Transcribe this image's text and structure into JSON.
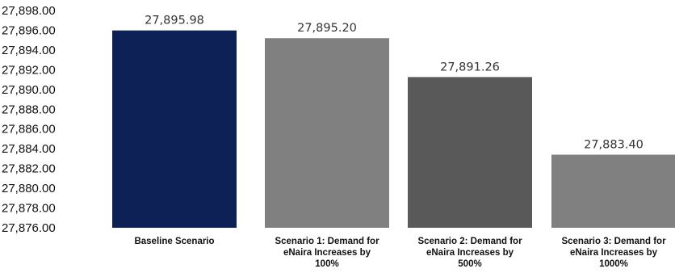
{
  "chart_data": {
    "type": "bar",
    "title": "",
    "xlabel": "",
    "ylabel": "",
    "categories": [
      [
        "Baseline Scenario"
      ],
      [
        "Scenario 1:  Demand for",
        "eNaira Increases by",
        "100%"
      ],
      [
        "Scenario 2: Demand for",
        "eNaira Increases by",
        "500%"
      ],
      [
        "Scenario 3: Demand for",
        "eNaira Increases by",
        "1000%"
      ]
    ],
    "values": [
      27895.98,
      27895.2,
      27891.26,
      27883.4
    ],
    "data_labels": [
      "27,895.98",
      "27,895.20",
      "27,891.26",
      "27,883.40"
    ],
    "bar_colors": [
      "#0d2157",
      "#808080",
      "#595959",
      "#808080"
    ],
    "ylim": [
      27876,
      27898
    ],
    "y_ticks": [
      27876,
      27878,
      27880,
      27882,
      27884,
      27886,
      27888,
      27890,
      27892,
      27894,
      27896,
      27898
    ],
    "y_tick_labels": [
      "27,876.00",
      "27,878.00",
      "27,880.00",
      "27,882.00",
      "27,884.00",
      "27,886.00",
      "27,888.00",
      "27,890.00",
      "27,892.00",
      "27,894.00",
      "27,896.00",
      "27,898.00"
    ],
    "grid": false,
    "legend": "none"
  }
}
